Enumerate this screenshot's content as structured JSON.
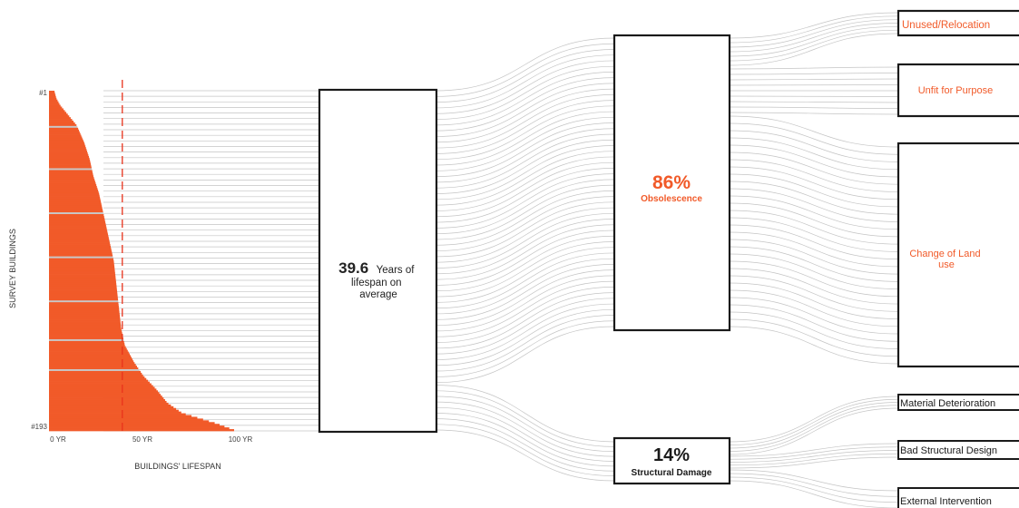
{
  "chart_data": {
    "type": "bar",
    "ylabel": "SURVEY BUILDINGS",
    "xlabel": "BUILDINGS' LIFESPAN",
    "x_ticks": [
      "0 YR",
      "50 YR",
      "100 YR"
    ],
    "xlim": [
      0,
      100
    ],
    "building_first_label": "#1",
    "building_last_label": "#193",
    "building_count": 193,
    "average_lifespan_years": 39.6,
    "average_value": "39.6",
    "average_text": "Years of lifespan on average",
    "lifespan_profile": [
      [
        0.0,
        3
      ],
      [
        0.02,
        4
      ],
      [
        0.04,
        6
      ],
      [
        0.06,
        9
      ],
      [
        0.08,
        12
      ],
      [
        0.1,
        15
      ],
      [
        0.15,
        19
      ],
      [
        0.2,
        22
      ],
      [
        0.25,
        24
      ],
      [
        0.3,
        27
      ],
      [
        0.35,
        29
      ],
      [
        0.4,
        31
      ],
      [
        0.45,
        33
      ],
      [
        0.5,
        35
      ],
      [
        0.55,
        36
      ],
      [
        0.6,
        37
      ],
      [
        0.65,
        38
      ],
      [
        0.7,
        39
      ],
      [
        0.75,
        41
      ],
      [
        0.8,
        46
      ],
      [
        0.84,
        51
      ],
      [
        0.88,
        58
      ],
      [
        0.92,
        64
      ],
      [
        0.95,
        72
      ],
      [
        0.98,
        90
      ],
      [
        1.0,
        100
      ]
    ],
    "highlighted_buildings": [
      20,
      44,
      69,
      94,
      119,
      141,
      158
    ],
    "flows": [
      {
        "percent": "86%",
        "label": "Obsolescence",
        "share": 0.86,
        "causes": [
          {
            "label": "Unused/Relocation",
            "share": 0.1
          },
          {
            "label": "Unfit for Purpose",
            "share": 0.16
          },
          {
            "label": "Change of Land use",
            "share": 0.6
          }
        ]
      },
      {
        "percent": "14%",
        "label": "Structural Damage",
        "share": 0.14,
        "causes": [
          {
            "label": "Material Deterioration",
            "share": 0.05
          },
          {
            "label": "Bad Structural Design",
            "share": 0.05
          },
          {
            "label": "External Intervention",
            "share": 0.04
          }
        ]
      }
    ]
  },
  "colors": {
    "bar": "#f15a29",
    "highlight": "#c8c8c8",
    "average_line": "#e8341c",
    "accent_text": "#f15a29",
    "flow_line": "#c4c4c4",
    "box_stroke": "#1a1a1a"
  }
}
